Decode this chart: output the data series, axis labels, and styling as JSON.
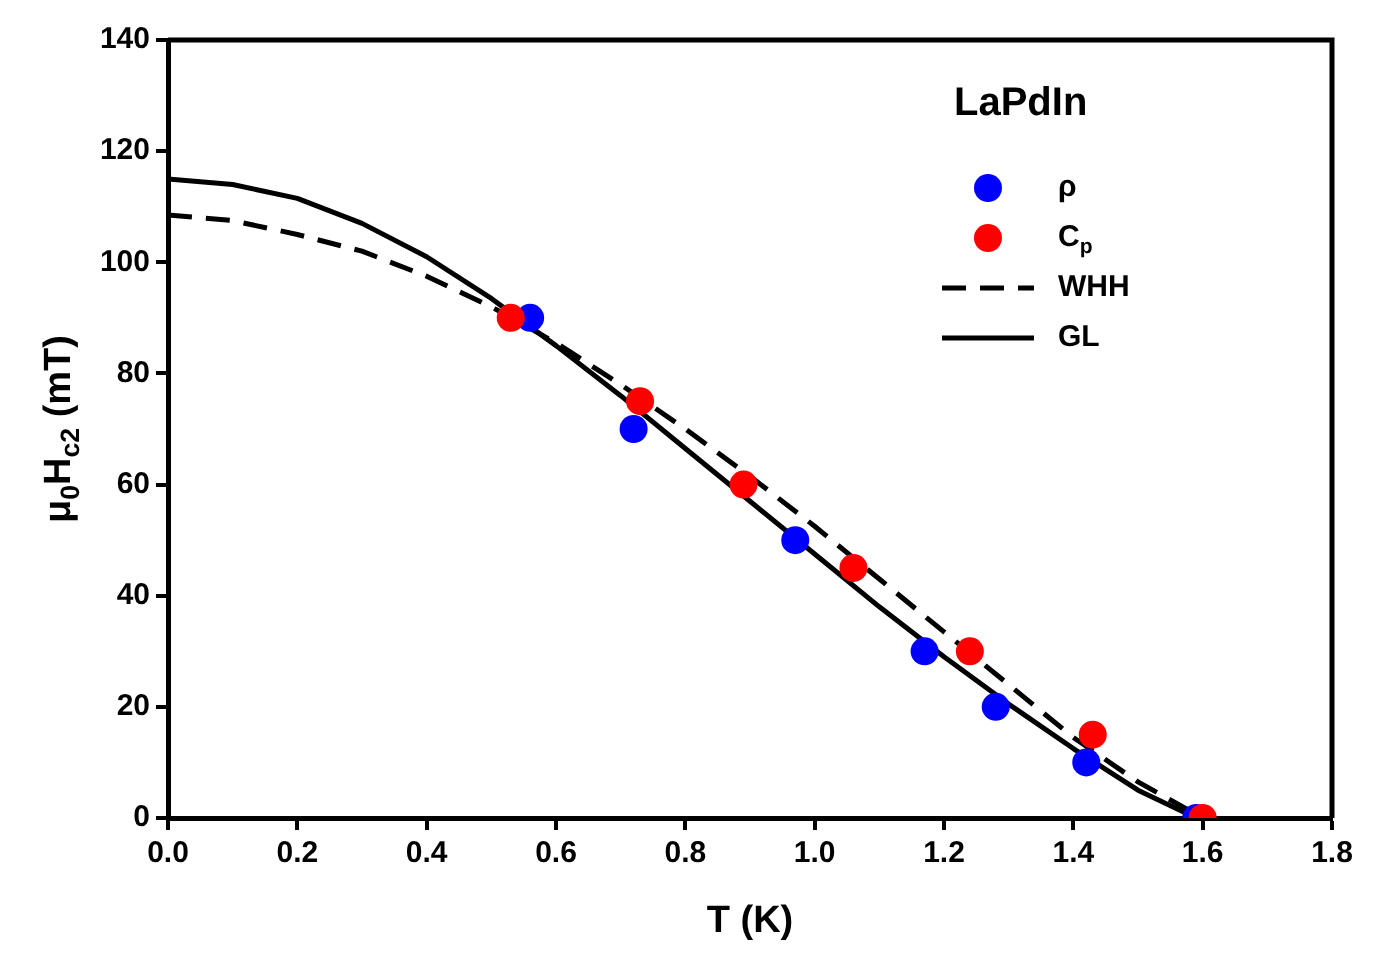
{
  "chart_data": {
    "type": "scatter",
    "xlabel": "T (K)",
    "ylabel": "μ$_{0}$H$_{c2}$ (mT)",
    "legend_title": "LaPdIn",
    "legend": "top right",
    "grid": false,
    "xlim": [
      0,
      1.8
    ],
    "xticks": [
      {
        "value": 0,
        "label": "0.0"
      },
      0.2,
      0.4,
      0.6,
      0.8,
      {
        "value": 1,
        "label": "1.0"
      },
      1.2,
      1.4,
      1.6,
      1.8
    ],
    "ylim": [
      0,
      140
    ],
    "yticks": [
      0,
      20,
      40,
      60,
      80,
      100,
      120,
      140
    ],
    "series": [
      {
        "name": "ρ",
        "marker": "circle",
        "color": "#0000ff",
        "x": [
          0.56,
          0.72,
          0.97,
          1.17,
          1.28,
          1.42,
          1.59
        ],
        "values": [
          90,
          70,
          50,
          30,
          20,
          10,
          0
        ]
      },
      {
        "name": "C$_{p}$",
        "marker": "circle",
        "color": "#ff0000",
        "x": [
          0.53,
          0.73,
          0.89,
          1.06,
          1.24,
          1.43,
          1.6
        ],
        "values": [
          90,
          75,
          60,
          45,
          30,
          15,
          0
        ]
      },
      {
        "name": "WHH",
        "type": "line",
        "line_style": "dashed",
        "marker": "none",
        "color": "#000000",
        "x": [
          0,
          0.1,
          0.2,
          0.3,
          0.4,
          0.5,
          0.6,
          0.7,
          0.8,
          0.9,
          1.0,
          1.1,
          1.2,
          1.3,
          1.4,
          1.5,
          1.6
        ],
        "values": [
          108.5,
          107.5,
          105,
          102,
          97.5,
          92,
          85.5,
          78,
          70,
          61.5,
          52.5,
          43,
          33.5,
          24,
          14.5,
          6.5,
          0
        ]
      },
      {
        "name": "GL",
        "type": "line",
        "line_style": "solid",
        "marker": "none",
        "color": "#000000",
        "x": [
          0,
          0.1,
          0.2,
          0.3,
          0.4,
          0.5,
          0.6,
          0.7,
          0.8,
          0.9,
          1.0,
          1.1,
          1.2,
          1.3,
          1.4,
          1.5,
          1.59
        ],
        "values": [
          115,
          114,
          111.5,
          107,
          101,
          93.5,
          85,
          76,
          66.5,
          57,
          47.5,
          38,
          29,
          20.5,
          12.5,
          5,
          0
        ]
      }
    ]
  }
}
